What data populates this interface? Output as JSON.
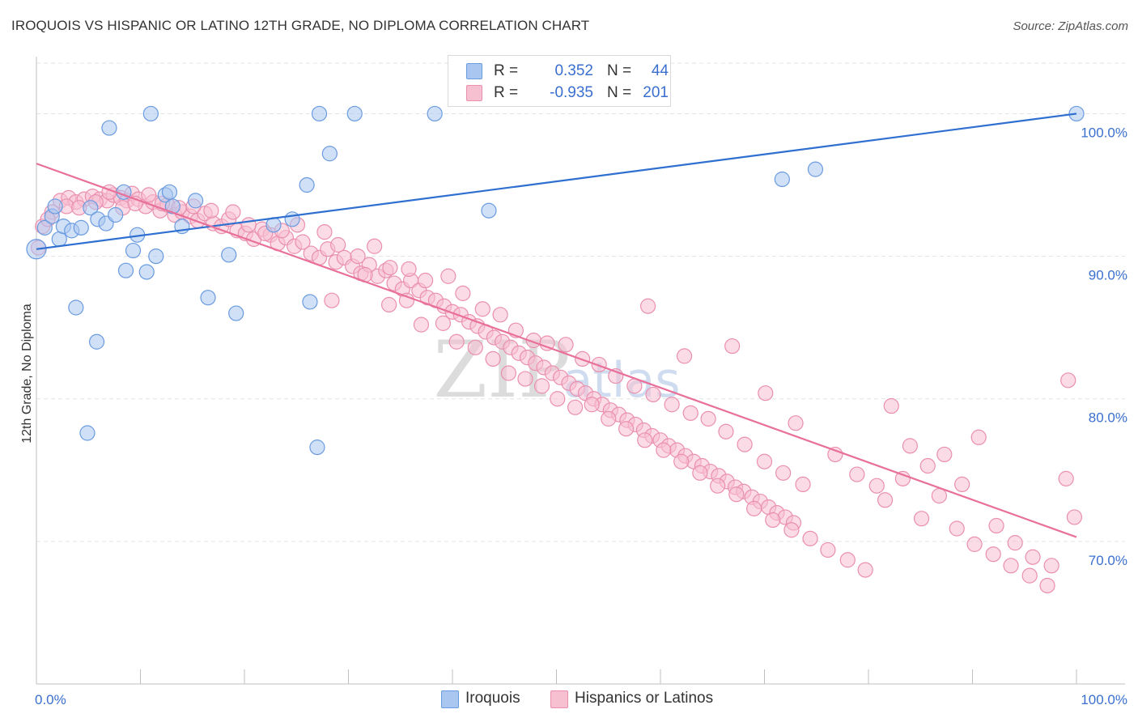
{
  "title": "IROQUOIS VS HISPANIC OR LATINO 12TH GRADE, NO DIPLOMA CORRELATION CHART",
  "source": "Source: ZipAtlas.com",
  "watermark": {
    "zip": "ZIP",
    "atlas": "atlas"
  },
  "legend_stats": [
    {
      "r_label": "R =",
      "r_value": "0.352",
      "n_label": "N =",
      "n_value": "44",
      "color": "#a9c6f0",
      "border": "#6a9be0"
    },
    {
      "r_label": "R =",
      "r_value": "-0.935",
      "n_label": "N =",
      "n_value": "201",
      "color": "#f7c0d1",
      "border": "#ea8fae"
    }
  ],
  "chart_data": {
    "type": "scatter",
    "xlabel": "",
    "ylabel": "12th Grade, No Diploma",
    "xlim": [
      0,
      100
    ],
    "ylim": [
      60,
      104
    ],
    "x_tick_labels": [
      "0.0%",
      "100.0%"
    ],
    "y_ticks": [
      70,
      80,
      90,
      100
    ],
    "y_tick_labels": [
      "70.0%",
      "80.0%",
      "90.0%",
      "100.0%"
    ],
    "grid": true,
    "legend_position": "bottom",
    "series": [
      {
        "name": "Iroquois",
        "color": "#6a9be0",
        "fill": "#a9c6f0",
        "trend": {
          "x0": 0,
          "y0": 90.5,
          "x1": 100,
          "y1": 100.0,
          "color": "#2f6fd0"
        },
        "points": [
          [
            0.0,
            90.5
          ],
          [
            0.8,
            92.0
          ],
          [
            1.5,
            92.8
          ],
          [
            1.8,
            93.5
          ],
          [
            2.2,
            91.2
          ],
          [
            2.6,
            92.1
          ],
          [
            3.4,
            91.8
          ],
          [
            4.3,
            92.0
          ],
          [
            5.2,
            93.4
          ],
          [
            5.9,
            92.6
          ],
          [
            6.7,
            92.3
          ],
          [
            7.6,
            92.9
          ],
          [
            8.4,
            94.5
          ],
          [
            9.3,
            90.4
          ],
          [
            9.7,
            91.5
          ],
          [
            10.6,
            88.9
          ],
          [
            11.5,
            90.0
          ],
          [
            12.4,
            94.3
          ],
          [
            12.8,
            94.5
          ],
          [
            13.1,
            93.5
          ],
          [
            14.0,
            92.1
          ],
          [
            15.3,
            93.9
          ],
          [
            16.5,
            87.1
          ],
          [
            18.5,
            90.1
          ],
          [
            19.2,
            86.0
          ],
          [
            7.0,
            99.0
          ],
          [
            11.0,
            100.0
          ],
          [
            27.2,
            100.0
          ],
          [
            30.6,
            100.0
          ],
          [
            38.3,
            100.0
          ],
          [
            100.0,
            100.0
          ],
          [
            28.2,
            97.2
          ],
          [
            71.7,
            95.4
          ],
          [
            74.9,
            96.1
          ],
          [
            26.0,
            95.0
          ],
          [
            43.5,
            93.2
          ],
          [
            22.8,
            92.2
          ],
          [
            24.6,
            92.6
          ],
          [
            3.8,
            86.4
          ],
          [
            5.8,
            84.0
          ],
          [
            4.9,
            77.6
          ],
          [
            26.3,
            86.8
          ],
          [
            27.0,
            76.6
          ],
          [
            8.6,
            89.0
          ]
        ]
      },
      {
        "name": "Hispanics or Latinos",
        "color": "#ea8fae",
        "fill": "#f7c0d1",
        "trend": {
          "x0": 0,
          "y0": 96.5,
          "x1": 100,
          "y1": 70.3,
          "color": "#e8709a"
        },
        "points": [
          [
            0.2,
            90.6
          ],
          [
            0.6,
            92.1
          ],
          [
            1.5,
            93.1
          ],
          [
            2.3,
            93.9
          ],
          [
            3.1,
            94.1
          ],
          [
            3.8,
            93.8
          ],
          [
            4.6,
            94.0
          ],
          [
            5.4,
            94.2
          ],
          [
            6.1,
            94.0
          ],
          [
            6.8,
            93.9
          ],
          [
            7.4,
            94.3
          ],
          [
            8.1,
            94.1
          ],
          [
            8.7,
            93.9
          ],
          [
            9.2,
            94.4
          ],
          [
            9.8,
            94.0
          ],
          [
            10.5,
            93.5
          ],
          [
            11.2,
            93.8
          ],
          [
            11.9,
            93.2
          ],
          [
            12.6,
            93.6
          ],
          [
            13.3,
            92.9
          ],
          [
            14.0,
            93.1
          ],
          [
            14.8,
            92.8
          ],
          [
            15.5,
            92.5
          ],
          [
            16.2,
            93.0
          ],
          [
            17.0,
            92.3
          ],
          [
            17.8,
            92.1
          ],
          [
            18.5,
            92.6
          ],
          [
            19.3,
            91.8
          ],
          [
            20.1,
            91.6
          ],
          [
            20.9,
            91.2
          ],
          [
            21.7,
            91.9
          ],
          [
            22.5,
            91.5
          ],
          [
            23.2,
            90.9
          ],
          [
            24.0,
            91.3
          ],
          [
            24.8,
            90.7
          ],
          [
            25.6,
            91.0
          ],
          [
            26.4,
            90.2
          ],
          [
            27.2,
            89.9
          ],
          [
            28.0,
            90.5
          ],
          [
            28.8,
            89.6
          ],
          [
            29.6,
            89.9
          ],
          [
            30.4,
            89.3
          ],
          [
            31.2,
            88.8
          ],
          [
            32.0,
            89.4
          ],
          [
            32.8,
            88.6
          ],
          [
            33.6,
            89.0
          ],
          [
            34.4,
            88.1
          ],
          [
            35.2,
            87.7
          ],
          [
            36.0,
            88.3
          ],
          [
            36.8,
            87.6
          ],
          [
            37.6,
            87.1
          ],
          [
            38.4,
            86.9
          ],
          [
            39.2,
            86.5
          ],
          [
            40.0,
            86.1
          ],
          [
            40.8,
            85.9
          ],
          [
            41.6,
            85.4
          ],
          [
            42.4,
            85.1
          ],
          [
            43.2,
            84.7
          ],
          [
            44.0,
            84.3
          ],
          [
            44.8,
            84.0
          ],
          [
            45.6,
            83.6
          ],
          [
            46.4,
            83.2
          ],
          [
            47.2,
            82.9
          ],
          [
            48.0,
            82.5
          ],
          [
            48.8,
            82.2
          ],
          [
            49.6,
            81.8
          ],
          [
            50.4,
            81.5
          ],
          [
            51.2,
            81.1
          ],
          [
            52.0,
            80.7
          ],
          [
            52.8,
            80.4
          ],
          [
            53.6,
            80.0
          ],
          [
            54.4,
            79.6
          ],
          [
            55.2,
            79.2
          ],
          [
            56.0,
            78.9
          ],
          [
            56.8,
            78.5
          ],
          [
            57.6,
            78.2
          ],
          [
            58.4,
            77.8
          ],
          [
            59.2,
            77.4
          ],
          [
            60.0,
            77.1
          ],
          [
            60.8,
            76.7
          ],
          [
            61.6,
            76.4
          ],
          [
            62.4,
            76.0
          ],
          [
            63.2,
            75.6
          ],
          [
            64.0,
            75.3
          ],
          [
            64.8,
            74.9
          ],
          [
            65.6,
            74.6
          ],
          [
            66.4,
            74.2
          ],
          [
            67.2,
            73.8
          ],
          [
            68.0,
            73.5
          ],
          [
            68.8,
            73.1
          ],
          [
            69.6,
            72.8
          ],
          [
            70.4,
            72.4
          ],
          [
            71.2,
            72.0
          ],
          [
            72.0,
            71.7
          ],
          [
            72.8,
            71.3
          ],
          [
            1.1,
            92.6
          ],
          [
            2.9,
            93.5
          ],
          [
            4.1,
            93.4
          ],
          [
            5.7,
            93.8
          ],
          [
            7.0,
            94.5
          ],
          [
            8.3,
            93.4
          ],
          [
            9.5,
            93.7
          ],
          [
            10.8,
            94.3
          ],
          [
            12.1,
            93.7
          ],
          [
            13.7,
            93.4
          ],
          [
            15.1,
            93.5
          ],
          [
            16.8,
            93.2
          ],
          [
            18.9,
            93.1
          ],
          [
            20.4,
            92.2
          ],
          [
            22.0,
            91.6
          ],
          [
            23.6,
            91.8
          ],
          [
            25.1,
            92.2
          ],
          [
            27.7,
            91.7
          ],
          [
            29.0,
            90.8
          ],
          [
            30.9,
            90.0
          ],
          [
            32.5,
            90.7
          ],
          [
            34.0,
            89.2
          ],
          [
            35.8,
            89.1
          ],
          [
            37.4,
            88.3
          ],
          [
            39.6,
            88.6
          ],
          [
            41.0,
            87.4
          ],
          [
            42.9,
            86.3
          ],
          [
            44.6,
            85.9
          ],
          [
            46.1,
            84.8
          ],
          [
            47.8,
            84.1
          ],
          [
            49.1,
            83.9
          ],
          [
            50.9,
            83.8
          ],
          [
            52.5,
            82.8
          ],
          [
            54.1,
            82.4
          ],
          [
            55.7,
            81.6
          ],
          [
            57.5,
            80.9
          ],
          [
            59.3,
            80.3
          ],
          [
            61.1,
            79.6
          ],
          [
            62.9,
            79.0
          ],
          [
            64.6,
            78.6
          ],
          [
            66.3,
            77.7
          ],
          [
            68.1,
            76.8
          ],
          [
            70.0,
            75.6
          ],
          [
            71.8,
            74.8
          ],
          [
            73.7,
            74.0
          ],
          [
            28.4,
            86.9
          ],
          [
            31.6,
            88.7
          ],
          [
            33.9,
            86.6
          ],
          [
            35.6,
            86.9
          ],
          [
            37.0,
            85.2
          ],
          [
            39.1,
            85.3
          ],
          [
            40.4,
            84.0
          ],
          [
            42.2,
            83.6
          ],
          [
            43.9,
            82.8
          ],
          [
            45.4,
            81.8
          ],
          [
            47.0,
            81.4
          ],
          [
            48.6,
            80.9
          ],
          [
            50.1,
            80.0
          ],
          [
            51.8,
            79.4
          ],
          [
            53.4,
            79.6
          ],
          [
            55.0,
            78.6
          ],
          [
            56.7,
            77.9
          ],
          [
            58.5,
            77.1
          ],
          [
            60.3,
            76.4
          ],
          [
            62.0,
            75.6
          ],
          [
            63.8,
            74.8
          ],
          [
            65.5,
            73.9
          ],
          [
            67.3,
            73.3
          ],
          [
            69.0,
            72.3
          ],
          [
            70.8,
            71.5
          ],
          [
            72.6,
            70.8
          ],
          [
            74.4,
            70.2
          ],
          [
            76.1,
            69.4
          ],
          [
            78.0,
            68.7
          ],
          [
            79.7,
            68.0
          ],
          [
            81.6,
            72.9
          ],
          [
            83.3,
            74.4
          ],
          [
            85.1,
            71.6
          ],
          [
            86.8,
            73.2
          ],
          [
            88.5,
            70.9
          ],
          [
            90.2,
            69.8
          ],
          [
            92.0,
            69.1
          ],
          [
            93.7,
            68.3
          ],
          [
            95.5,
            67.6
          ],
          [
            97.2,
            66.9
          ],
          [
            58.8,
            86.5
          ],
          [
            62.3,
            83.0
          ],
          [
            66.9,
            83.7
          ],
          [
            70.1,
            80.4
          ],
          [
            73.0,
            78.3
          ],
          [
            76.8,
            76.1
          ],
          [
            78.9,
            74.7
          ],
          [
            80.8,
            73.9
          ],
          [
            82.2,
            79.5
          ],
          [
            84.0,
            76.7
          ],
          [
            85.7,
            75.3
          ],
          [
            87.3,
            76.1
          ],
          [
            89.0,
            74.0
          ],
          [
            90.6,
            77.3
          ],
          [
            92.3,
            71.1
          ],
          [
            94.1,
            69.9
          ],
          [
            95.8,
            68.9
          ],
          [
            97.6,
            68.3
          ],
          [
            99.0,
            74.4
          ],
          [
            99.8,
            71.7
          ],
          [
            99.2,
            81.3
          ]
        ]
      }
    ]
  }
}
